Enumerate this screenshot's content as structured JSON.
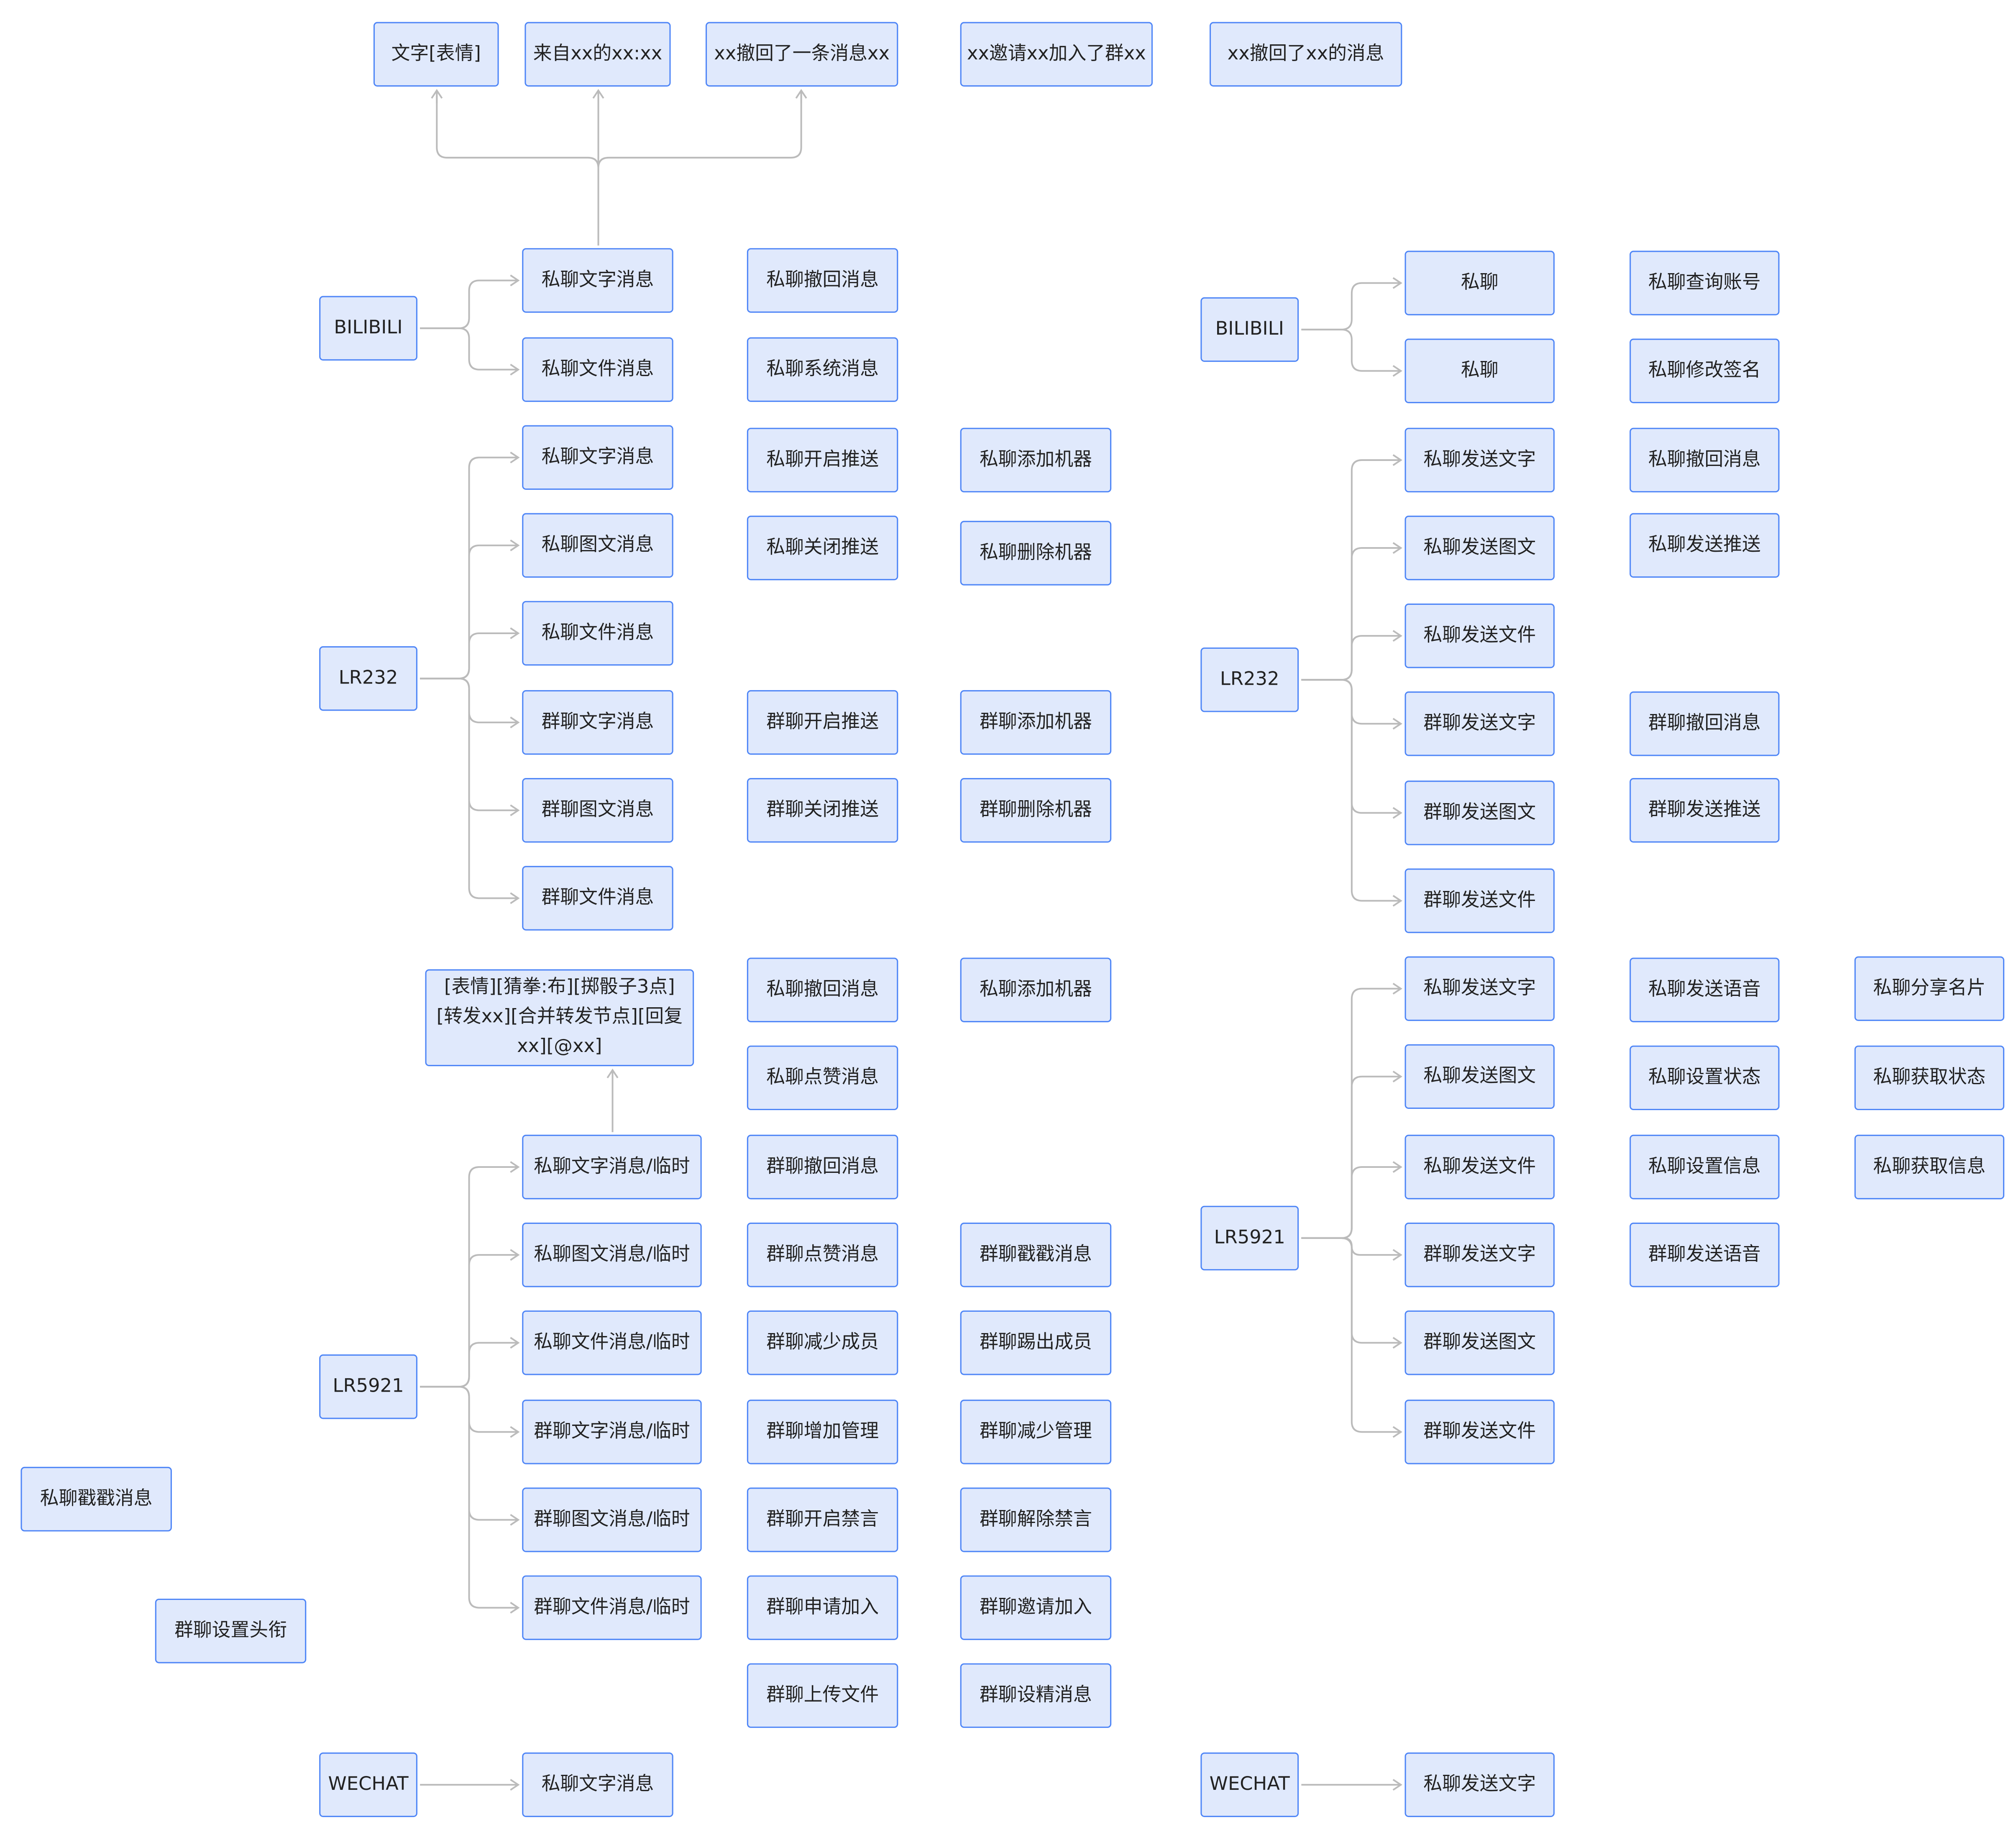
{
  "colors": {
    "node_fill": "#e0e9fc",
    "node_border": "#4f86f7",
    "edge": "#bbbbbb",
    "text": "#222222"
  },
  "nodes": [
    "文字[表情]",
    "来自xx的xx:xx",
    "xx撤回了一条消息xx",
    "xx邀请xx加入了群xx",
    "xx撤回了xx的消息",
    "BILIBILI",
    "私聊文字消息",
    "私聊文件消息",
    "私聊撤回消息",
    "私聊系统消息",
    "LR232",
    "私聊文字消息",
    "私聊图文消息",
    "私聊文件消息",
    "群聊文字消息",
    "群聊图文消息",
    "群聊文件消息",
    "私聊开启推送",
    "私聊关闭推送",
    "群聊开启推送",
    "群聊关闭推送",
    "私聊添加机器",
    "私聊删除机器",
    "群聊添加机器",
    "群聊删除机器",
    "[表情][猜拳:布][掷骰子3点][转发xx][合并转发节点][回复xx][@xx]",
    "LR5921",
    "私聊文字消息/临时",
    "私聊图文消息/临时",
    "私聊文件消息/临时",
    "群聊文字消息/临时",
    "群聊图文消息/临时",
    "群聊文件消息/临时",
    "私聊撤回消息",
    "私聊点赞消息",
    "群聊撤回消息",
    "群聊点赞消息",
    "群聊减少成员",
    "群聊增加管理",
    "群聊开启禁言",
    "群聊申请加入",
    "群聊上传文件",
    "私聊添加机器",
    "群聊戳戳消息",
    "群聊踢出成员",
    "群聊减少管理",
    "群聊解除禁言",
    "群聊邀请加入",
    "群聊设精消息",
    "私聊戳戳消息",
    "群聊设置头衔",
    "WECHAT",
    "私聊文字消息",
    "BILIBILI",
    "私聊",
    "私聊",
    "私聊查询账号",
    "私聊修改签名",
    "LR232",
    "私聊发送文字",
    "私聊发送图文",
    "私聊发送文件",
    "群聊发送文字",
    "群聊发送图文",
    "群聊发送文件",
    "私聊撤回消息",
    "私聊发送推送",
    "群聊撤回消息",
    "群聊发送推送",
    "LR5921",
    "私聊发送文字",
    "私聊发送图文",
    "私聊发送文件",
    "群聊发送文字",
    "群聊发送图文",
    "群聊发送文件",
    "私聊发送语音",
    "私聊设置状态",
    "私聊设置信息",
    "群聊发送语音",
    "私聊分享名片",
    "私聊获取状态",
    "私聊获取信息",
    "WECHAT",
    "私聊发送文字"
  ]
}
